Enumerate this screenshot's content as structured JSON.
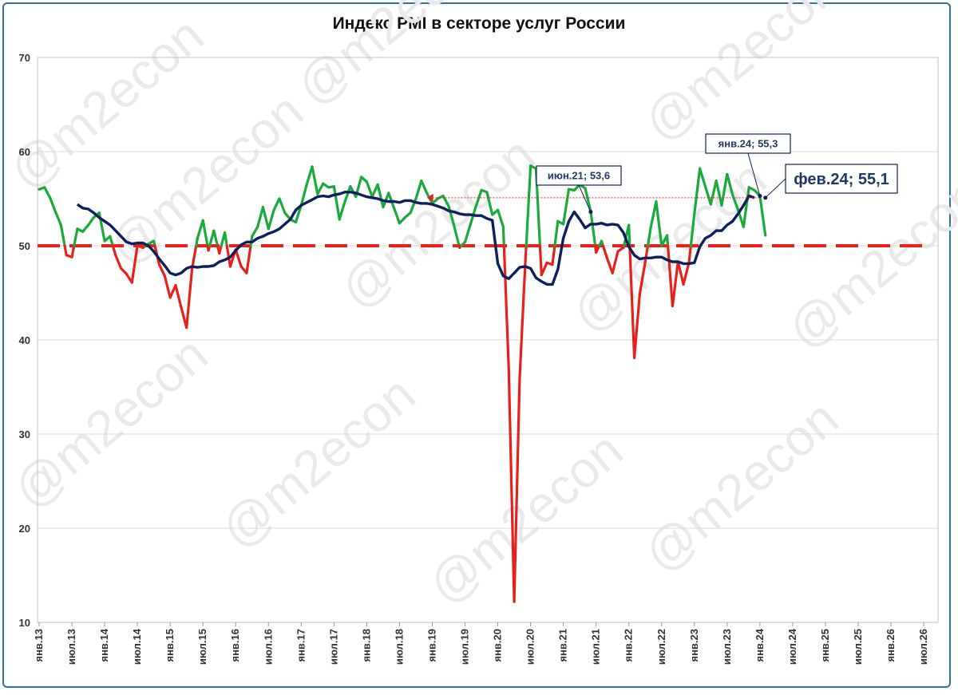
{
  "title": "Индекс PMI в секторе услуг России",
  "watermark": "@m2econ",
  "colors": {
    "above": "#1aaa3c",
    "below": "#e8201c",
    "trend": "#0d1f5c",
    "threshold": "#e8201c",
    "frame": "#2f6fb5",
    "grid": "#d9d9d9"
  },
  "chart_data": {
    "type": "line",
    "title": "Индекс PMI в секторе услуг России",
    "xlabel": "",
    "ylabel": "",
    "ylim": [
      10,
      70
    ],
    "yticks": [
      10,
      20,
      30,
      40,
      50,
      60,
      70
    ],
    "grid": true,
    "x_ticks": [
      "янв.13",
      "июл.13",
      "янв.14",
      "июл.14",
      "янв.15",
      "июл.15",
      "янв.16",
      "июл.16",
      "янв.17",
      "июл.17",
      "янв.18",
      "июл.18",
      "янв.19",
      "июл.19",
      "янв.20",
      "июл.20",
      "янв.21",
      "июл.21",
      "янв.22",
      "июл.22",
      "янв.23",
      "июл.23",
      "янв.24",
      "июл.24",
      "янв.25",
      "июл.25",
      "янв.26",
      "июл.26"
    ],
    "threshold": 50,
    "start_month": "янв.13",
    "series": [
      {
        "role": "monthly",
        "values": [
          56.0,
          56.2,
          55.1,
          53.6,
          52.2,
          49.0,
          48.8,
          51.8,
          51.5,
          52.2,
          53.0,
          53.5,
          50.5,
          51.0,
          49.0,
          47.6,
          47.0,
          46.1,
          50.0,
          49.8,
          50.2,
          50.5,
          48.0,
          46.8,
          44.5,
          45.8,
          43.5,
          41.3,
          47.5,
          50.8,
          52.7,
          49.5,
          51.6,
          49.2,
          51.4,
          47.8,
          49.6,
          47.8,
          47.1,
          51.0,
          52.0,
          54.1,
          51.8,
          53.8,
          55.0,
          53.5,
          52.8,
          52.5,
          54.3,
          56.5,
          58.4,
          55.5,
          56.6,
          56.2,
          56.3,
          52.8,
          54.7,
          56.3,
          55.2,
          57.3,
          56.8,
          55.2,
          56.5,
          54.1,
          55.6,
          54.0,
          52.4,
          53.0,
          53.5,
          55.0,
          56.9,
          55.6,
          54.5,
          55.0,
          55.3,
          54.2,
          52.1,
          49.8,
          50.4,
          52.3,
          54.2,
          55.9,
          55.7,
          53.3,
          53.8,
          52.0,
          37.0,
          12.2,
          35.9,
          47.8,
          58.5,
          58.2,
          46.9,
          48.2,
          48.0,
          52.6,
          52.3,
          56.0,
          55.9,
          56.5,
          56.1,
          53.7,
          49.3,
          50.5,
          48.7,
          47.1,
          49.4,
          49.8,
          52.2,
          38.1,
          44.9,
          48.3,
          51.9,
          54.7,
          50.0,
          51.1,
          43.6,
          48.3,
          45.9,
          48.2,
          53.4,
          58.2,
          56.3,
          54.4,
          56.9,
          54.3,
          57.6,
          55.4,
          53.8,
          52.0,
          56.2,
          55.9,
          55.3,
          51.1
        ]
      },
      {
        "role": "trend",
        "start_index": 7,
        "values": [
          54.4,
          54.0,
          53.9,
          53.5,
          53.0,
          52.6,
          52.2,
          51.6,
          51.0,
          50.4,
          50.2,
          50.3,
          50.3,
          50.0,
          49.4,
          48.6,
          47.9,
          47.1,
          46.9,
          47.1,
          47.6,
          47.8,
          47.7,
          47.8,
          47.8,
          47.9,
          48.3,
          48.5,
          48.8,
          49.5,
          50.1,
          50.4,
          50.4,
          50.8,
          51.0,
          51.3,
          51.5,
          51.8,
          52.3,
          52.8,
          53.8,
          54.3,
          54.6,
          54.9,
          55.2,
          55.3,
          55.2,
          55.4,
          55.5,
          55.7,
          55.7,
          55.6,
          55.4,
          55.2,
          55.1,
          55.0,
          54.8,
          54.7,
          54.7,
          54.6,
          54.8,
          54.8,
          54.6,
          54.5,
          54.5,
          54.4,
          54.2,
          54.0,
          53.7,
          53.6,
          53.4,
          53.3,
          53.3,
          53.2,
          53.2,
          52.9,
          52.7,
          48.1,
          46.8,
          46.5,
          47.1,
          47.7,
          47.8,
          47.6,
          46.6,
          46.2,
          45.9,
          45.9,
          47.5,
          50.8,
          52.6,
          53.6,
          52.8,
          51.9,
          52.3,
          52.3,
          52.4,
          52.2,
          52.3,
          52.2,
          51.4,
          49.9,
          49.0,
          48.6,
          48.7,
          48.7,
          48.8,
          48.8,
          48.5,
          48.3,
          48.3,
          48.1,
          48.1,
          48.2,
          49.9,
          50.8,
          51.1,
          51.6,
          51.6,
          52.2,
          52.6,
          53.4,
          54.3,
          55.3,
          55.1
        ]
      }
    ],
    "annotations": [
      {
        "label": "июн.21; 53,6",
        "month_index": 101,
        "value": 53.6
      },
      {
        "label": "янв.24; 55,3",
        "month_index": 132,
        "value": 55.3
      },
      {
        "label": "фев.24; 55,1",
        "month_index": 133,
        "value": 55.1
      }
    ],
    "reference_line_value": 55.1
  }
}
